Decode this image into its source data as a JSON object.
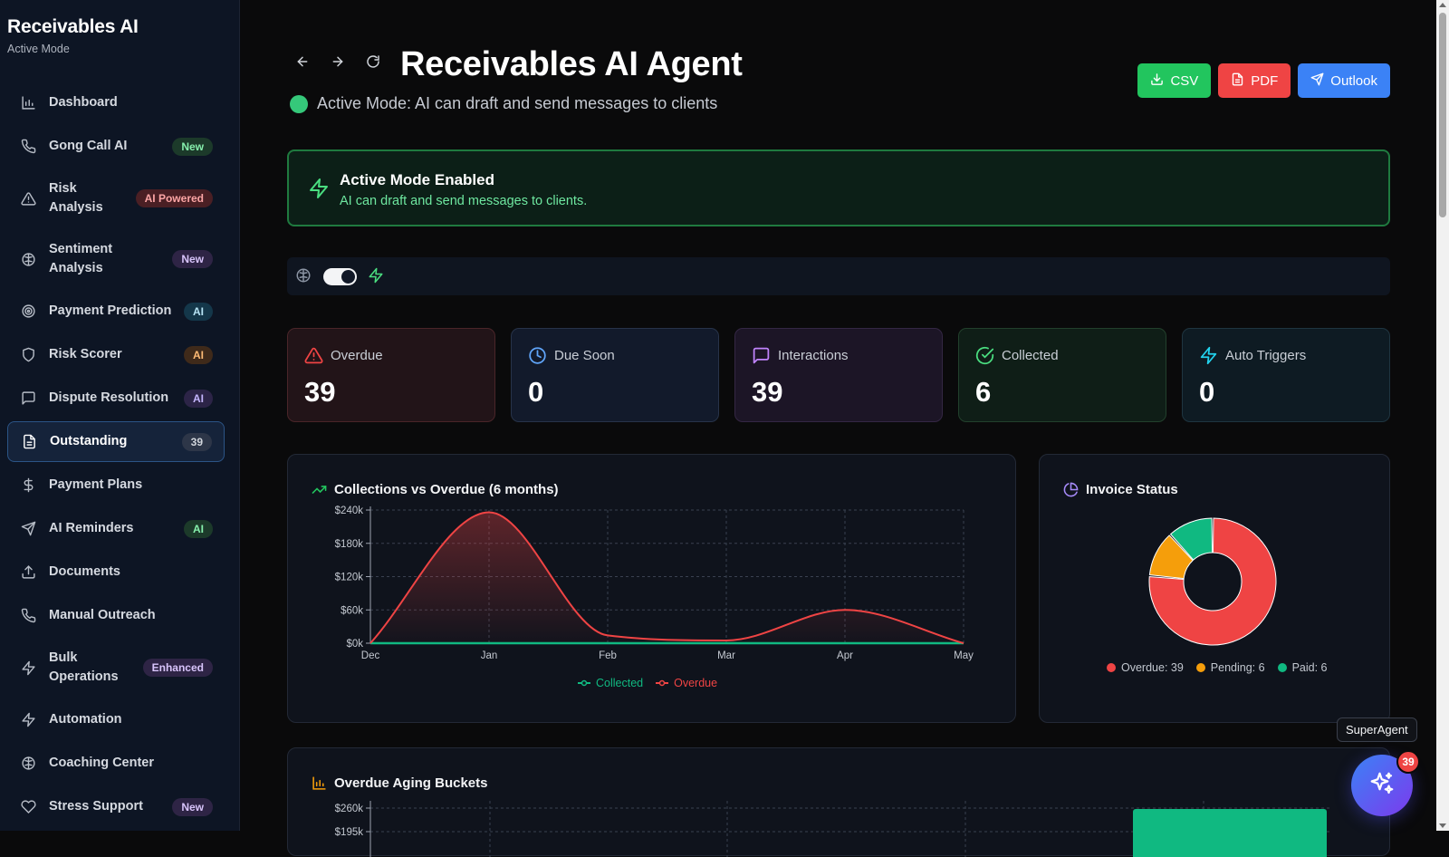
{
  "sidebar": {
    "title": "Receivables AI",
    "subtitle": "Active Mode",
    "items": [
      {
        "label": "Dashboard",
        "icon": "bar-chart-icon"
      },
      {
        "label": "Gong Call AI",
        "icon": "phone-icon",
        "badge": "New"
      },
      {
        "label": "Risk Analysis",
        "icon": "warning-triangle-icon",
        "badge": "AI Powered"
      },
      {
        "label": "Sentiment Analysis",
        "icon": "brain-icon",
        "badge": "New"
      },
      {
        "label": "Payment Prediction",
        "icon": "target-icon",
        "badge": "AI"
      },
      {
        "label": "Risk Scorer",
        "icon": "shield-icon",
        "badge": "AI"
      },
      {
        "label": "Dispute Resolution",
        "icon": "message-square-icon",
        "badge": "AI"
      },
      {
        "label": "Outstanding",
        "icon": "file-text-icon",
        "badge": "39"
      },
      {
        "label": "Payment Plans",
        "icon": "dollar-icon"
      },
      {
        "label": "AI Reminders",
        "icon": "send-icon",
        "badge": "AI"
      },
      {
        "label": "Documents",
        "icon": "upload-icon"
      },
      {
        "label": "Manual Outreach",
        "icon": "phone-icon"
      },
      {
        "label": "Bulk Operations",
        "icon": "zap-icon",
        "badge": "Enhanced"
      },
      {
        "label": "Automation",
        "icon": "zap-icon"
      },
      {
        "label": "Coaching Center",
        "icon": "brain-icon"
      },
      {
        "label": "Stress Support",
        "icon": "heart-icon",
        "badge": "New"
      }
    ]
  },
  "header": {
    "title": "Receivables AI Agent",
    "mode_text": "Active Mode: AI can draft and send messages to clients",
    "buttons": {
      "csv": "CSV",
      "pdf": "PDF",
      "outlook": "Outlook"
    }
  },
  "banner": {
    "title": "Active Mode Enabled",
    "text": "AI can draft and send messages to clients."
  },
  "toggle": {
    "active_mode_on": true
  },
  "stats": {
    "overdue": {
      "label": "Overdue",
      "value": "39"
    },
    "due_soon": {
      "label": "Due Soon",
      "value": "0"
    },
    "interactions": {
      "label": "Interactions",
      "value": "39"
    },
    "collected": {
      "label": "Collected",
      "value": "6"
    },
    "auto_triggers": {
      "label": "Auto Triggers",
      "value": "0"
    }
  },
  "colors": {
    "overdue": "#ef4444",
    "collected": "#10b981",
    "pending": "#f59e0b",
    "paid": "#10b981",
    "accent_green": "#4ade80"
  },
  "chart_data": [
    {
      "type": "line",
      "title": "Collections vs Overdue (6 months)",
      "categories": [
        "Dec",
        "Jan",
        "Feb",
        "Mar",
        "Apr",
        "May"
      ],
      "y_ticks": [
        "$0k",
        "$60k",
        "$120k",
        "$180k",
        "$240k"
      ],
      "ylim": [
        0,
        240
      ],
      "grid": true,
      "legend_position": "bottom",
      "series": [
        {
          "name": "Collected",
          "color": "#10b981",
          "values": [
            0,
            0,
            0,
            0,
            0,
            0
          ]
        },
        {
          "name": "Overdue",
          "color": "#ef4444",
          "values": [
            0,
            236,
            14,
            5,
            60,
            0
          ]
        }
      ]
    },
    {
      "type": "pie",
      "title": "Invoice Status",
      "legend_position": "bottom",
      "slices": [
        {
          "label": "Overdue",
          "value": 39,
          "legend": "Overdue: 39",
          "color": "#ef4444"
        },
        {
          "label": "Pending",
          "value": 6,
          "legend": "Pending: 6",
          "color": "#f59e0b"
        },
        {
          "label": "Paid",
          "value": 6,
          "legend": "Paid: 6",
          "color": "#10b981"
        }
      ]
    },
    {
      "type": "bar",
      "title": "Overdue Aging Buckets",
      "y_ticks": [
        "$260k",
        "$195k"
      ],
      "ylim": [
        0,
        260
      ],
      "grid": true,
      "bar_color": "#10b981"
    }
  ],
  "floating": {
    "tooltip": "SuperAgent",
    "count": "39"
  }
}
